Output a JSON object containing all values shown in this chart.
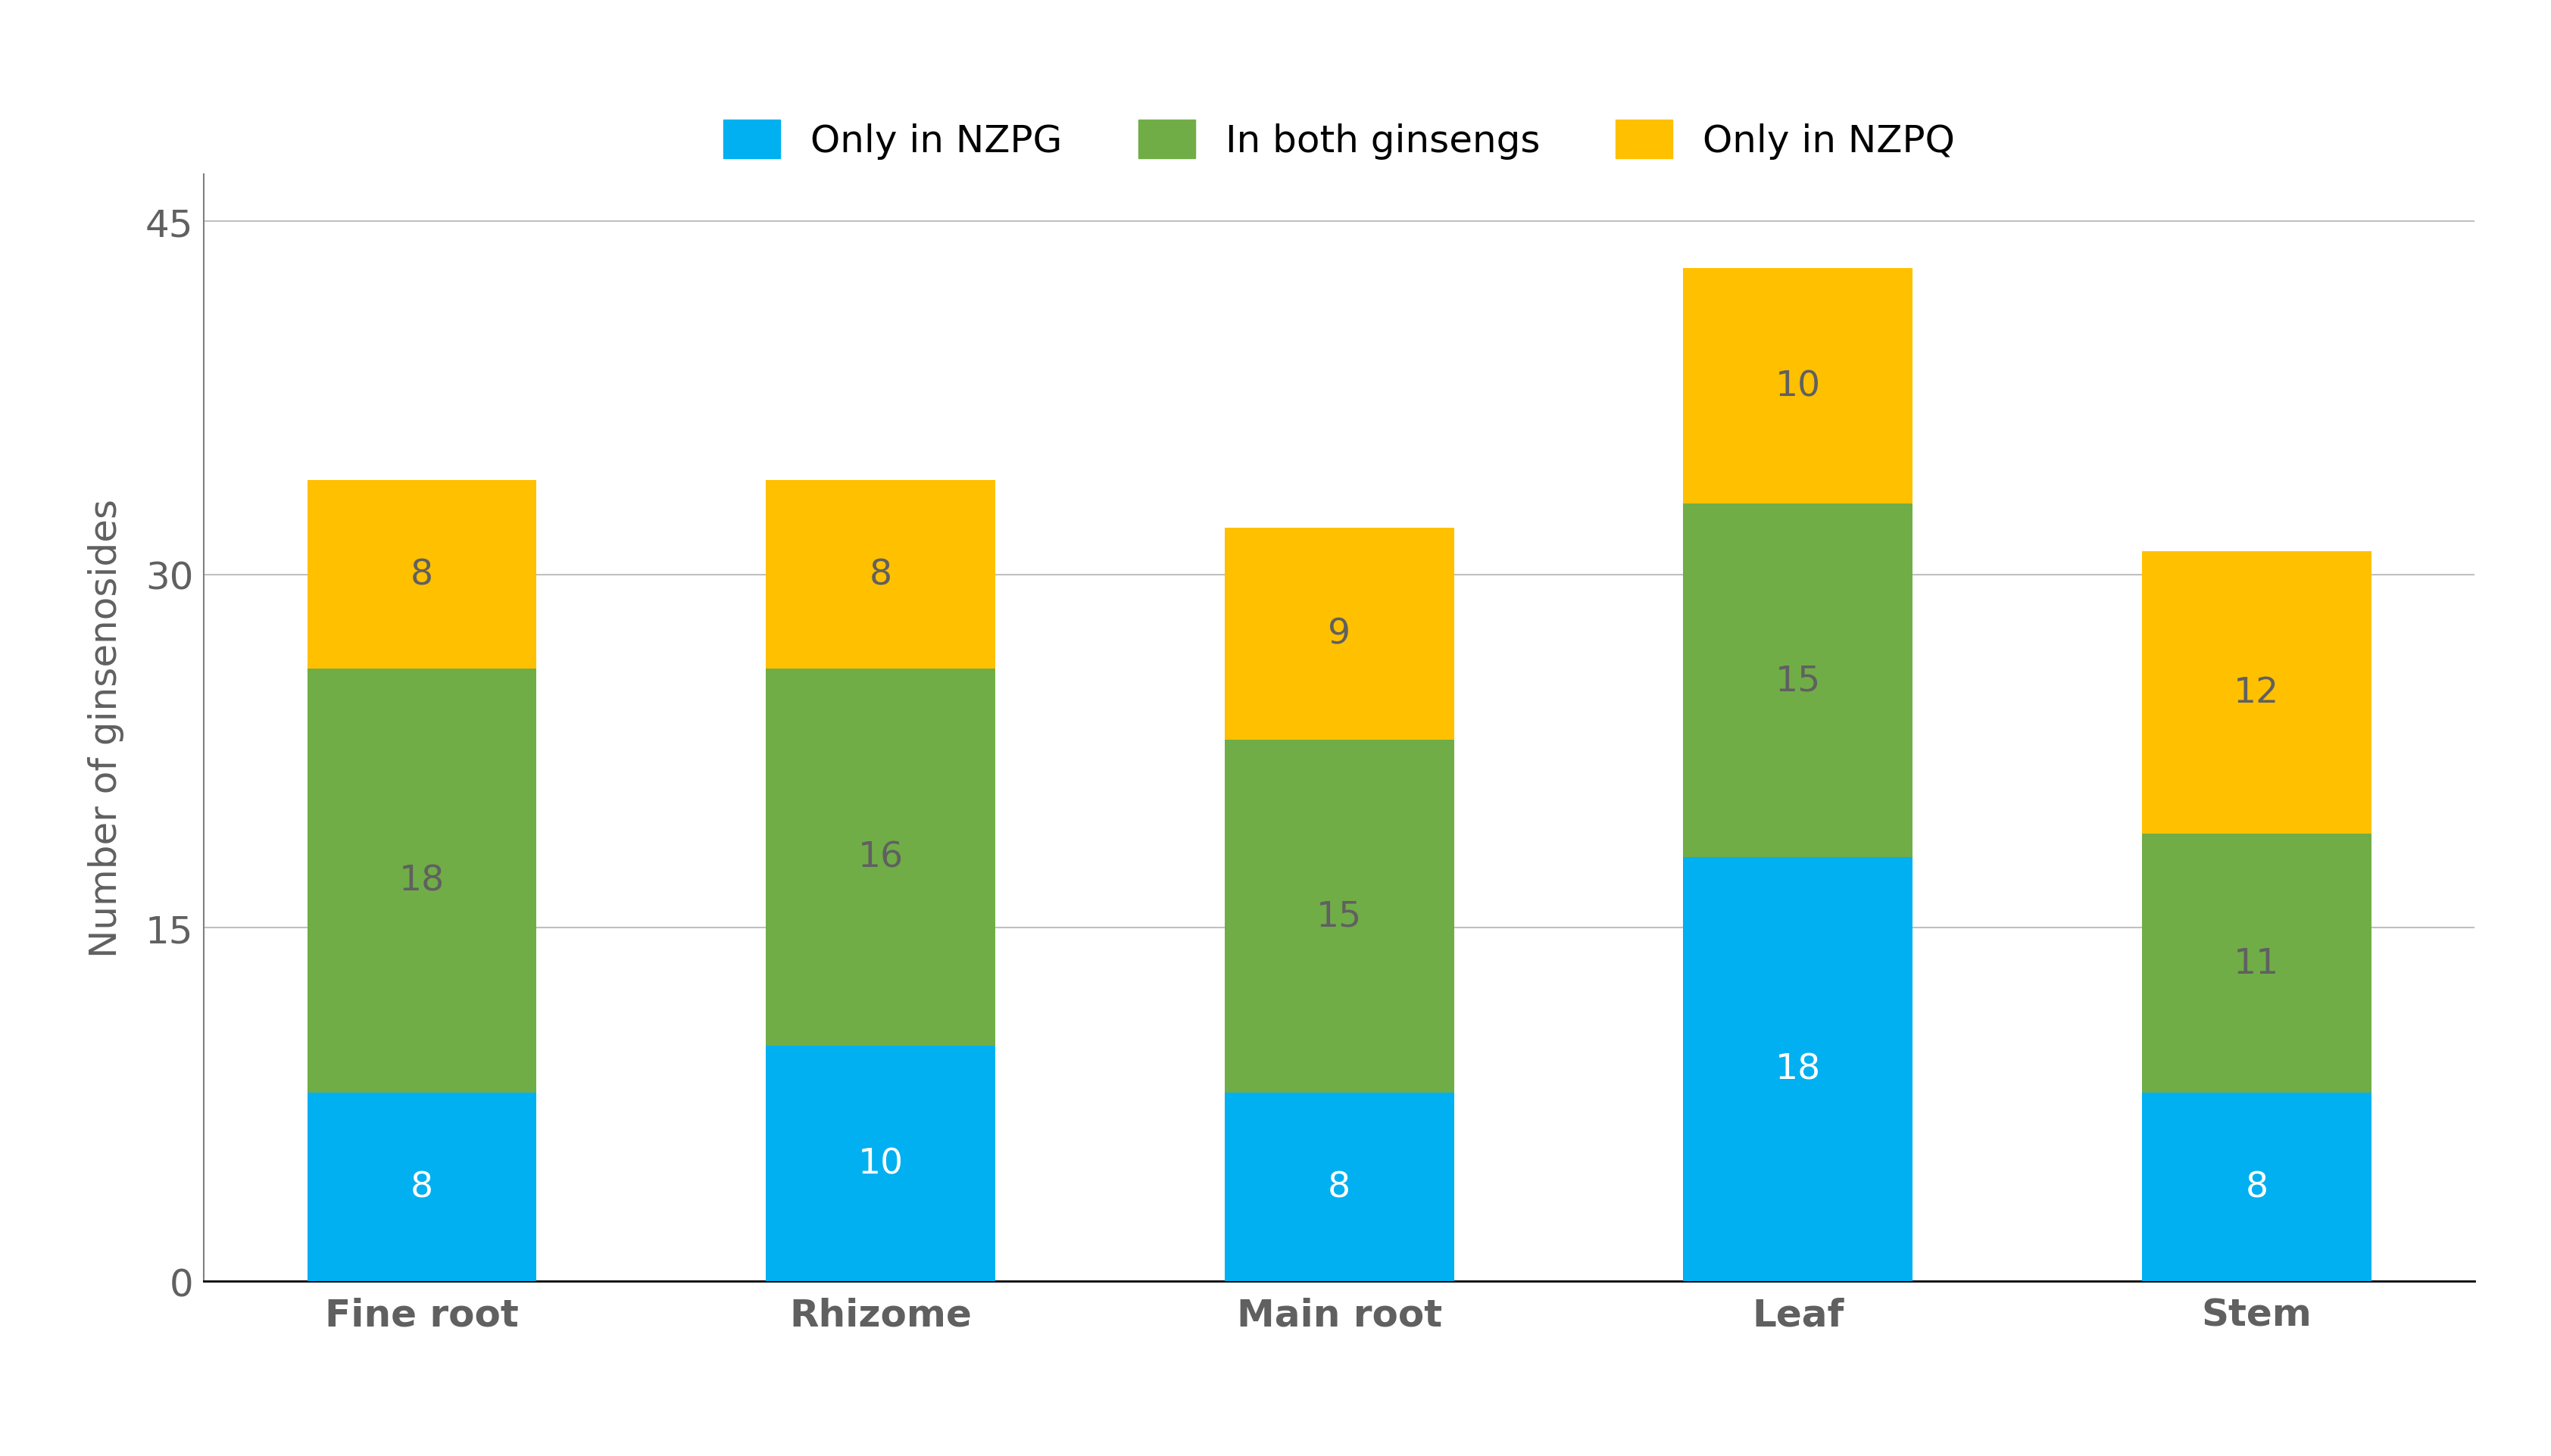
{
  "categories": [
    "Fine root",
    "Rhizome",
    "Main root",
    "Leaf",
    "Stem"
  ],
  "series": {
    "Only in NZPG": [
      8,
      10,
      8,
      18,
      8
    ],
    "In both ginsengs": [
      18,
      16,
      15,
      15,
      11
    ],
    "Only in NZPQ": [
      8,
      8,
      9,
      10,
      12
    ]
  },
  "colors": {
    "Only in NZPG": "#00B0F0",
    "In both ginsengs": "#70AD47",
    "Only in NZPQ": "#FFC000"
  },
  "ylabel": "Number of ginsenosides",
  "ylim": [
    0,
    47
  ],
  "yticks": [
    0,
    15,
    30,
    45
  ],
  "grid_color": "#C0C0C0",
  "bar_width": 0.5,
  "legend_order": [
    "Only in NZPG",
    "In both ginsengs",
    "Only in NZPQ"
  ],
  "tick_fontsize": 36,
  "legend_fontsize": 36,
  "value_fontsize": 34,
  "ylabel_fontsize": 36,
  "background_color": "#FFFFFF",
  "axes_background": "#FFFFFF",
  "text_color_blue": "#FFFFFF",
  "text_color_green": "#606060",
  "text_color_yellow": "#606060"
}
